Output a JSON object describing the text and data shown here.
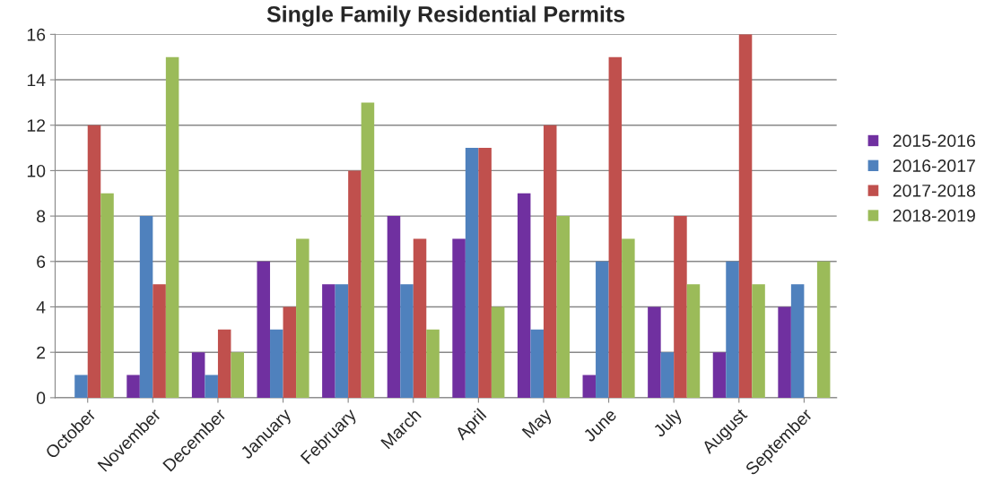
{
  "chart_data": {
    "type": "bar",
    "title": "Single Family Residential Permits",
    "categories": [
      "October",
      "November",
      "December",
      "January",
      "February",
      "March",
      "April",
      "May",
      "June",
      "July",
      "August",
      "September"
    ],
    "series": [
      {
        "name": "2015-2016",
        "color": "#7030a0",
        "values": [
          null,
          1,
          2,
          6,
          5,
          8,
          7,
          9,
          1,
          4,
          2,
          4
        ]
      },
      {
        "name": "2016-2017",
        "color": "#4f81bd",
        "values": [
          1,
          8,
          1,
          3,
          5,
          5,
          11,
          3,
          6,
          2,
          6,
          5
        ]
      },
      {
        "name": "2017-2018",
        "color": "#c0504d",
        "values": [
          12,
          5,
          3,
          4,
          10,
          7,
          11,
          12,
          15,
          8,
          16,
          null
        ]
      },
      {
        "name": "2018-2019",
        "color": "#9bbb59",
        "values": [
          9,
          15,
          2,
          7,
          13,
          3,
          4,
          8,
          7,
          5,
          5,
          6
        ]
      }
    ],
    "ylim": [
      0,
      16
    ],
    "yticks": [
      0,
      2,
      4,
      6,
      8,
      10,
      12,
      14,
      16
    ],
    "grid": "y",
    "legend": "right"
  }
}
